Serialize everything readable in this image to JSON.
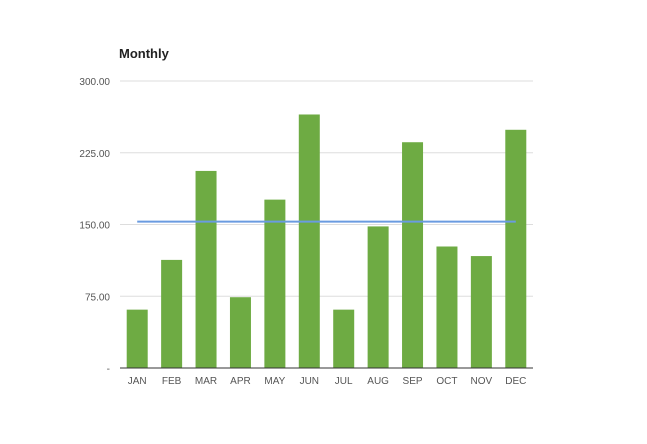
{
  "chart_data": {
    "type": "bar",
    "title": "Monthly",
    "xlabel": "",
    "ylabel": "",
    "categories": [
      "JAN",
      "FEB",
      "MAR",
      "APR",
      "MAY",
      "JUN",
      "JUL",
      "AUG",
      "SEP",
      "OCT",
      "NOV",
      "DEC"
    ],
    "values": [
      61,
      113,
      206,
      74,
      176,
      265,
      61,
      148,
      236,
      127,
      117,
      249
    ],
    "average_line": 153,
    "ylim": [
      0,
      300
    ],
    "yticks": [
      0,
      75,
      150,
      225,
      300
    ],
    "ytick_labels": [
      "-",
      "75.00",
      "150.00",
      "225.00",
      "300.00"
    ],
    "grid": true,
    "legend": "none",
    "colors": {
      "bar": "#6eab43",
      "line": "#6a9be0",
      "grid": "#dddddd",
      "axis": "#333333"
    }
  }
}
